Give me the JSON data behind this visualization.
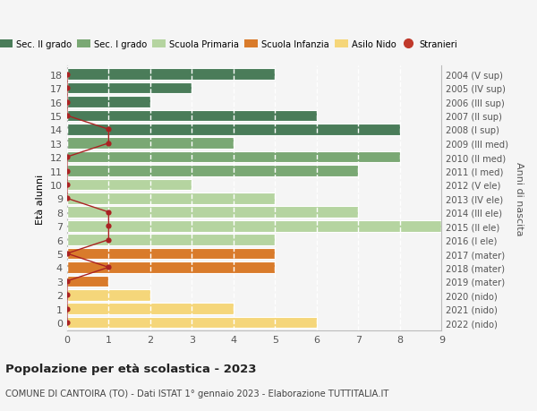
{
  "ages": [
    18,
    17,
    16,
    15,
    14,
    13,
    12,
    11,
    10,
    9,
    8,
    7,
    6,
    5,
    4,
    3,
    2,
    1,
    0
  ],
  "years": [
    "2004 (V sup)",
    "2005 (IV sup)",
    "2006 (III sup)",
    "2007 (II sup)",
    "2008 (I sup)",
    "2009 (III med)",
    "2010 (II med)",
    "2011 (I med)",
    "2012 (V ele)",
    "2013 (IV ele)",
    "2014 (III ele)",
    "2015 (II ele)",
    "2016 (I ele)",
    "2017 (mater)",
    "2018 (mater)",
    "2019 (mater)",
    "2020 (nido)",
    "2021 (nido)",
    "2022 (nido)"
  ],
  "bar_values": [
    5,
    3,
    2,
    6,
    8,
    4,
    8,
    7,
    3,
    5,
    7,
    9,
    5,
    5,
    5,
    1,
    2,
    4,
    6
  ],
  "bar_colors": [
    "#4a7c59",
    "#4a7c59",
    "#4a7c59",
    "#4a7c59",
    "#4a7c59",
    "#7aa874",
    "#7aa874",
    "#7aa874",
    "#b5d4a0",
    "#b5d4a0",
    "#b5d4a0",
    "#b5d4a0",
    "#b5d4a0",
    "#d97b2b",
    "#d97b2b",
    "#d97b2b",
    "#f5d67a",
    "#f5d67a",
    "#f5d67a"
  ],
  "stranieri_x": {
    "18": 0,
    "17": 0,
    "16": 0,
    "15": 0,
    "14": 1,
    "13": 1,
    "12": 0,
    "11": 0,
    "10": 0,
    "9": 0,
    "8": 1,
    "7": 1,
    "6": 1,
    "5": 0,
    "4": 1,
    "3": 0,
    "2": 0,
    "1": 0,
    "0": 0
  },
  "legend_labels": [
    "Sec. II grado",
    "Sec. I grado",
    "Scuola Primaria",
    "Scuola Infanzia",
    "Asilo Nido",
    "Stranieri"
  ],
  "legend_colors": [
    "#4a7c59",
    "#7aa874",
    "#b5d4a0",
    "#d97b2b",
    "#f5d67a",
    "#c0392b"
  ],
  "title": "Popolazione per età scolastica - 2023",
  "subtitle": "COMUNE DI CANTOIRA (TO) - Dati ISTAT 1° gennaio 2023 - Elaborazione TUTTITALIA.IT",
  "ylabel_left": "Età alunni",
  "ylabel_right": "Anni di nascita",
  "background_color": "#f5f5f5",
  "stranieri_color": "#aa2222",
  "line_color": "#aa2222",
  "figsize": [
    6.0,
    4.6
  ],
  "dpi": 100
}
